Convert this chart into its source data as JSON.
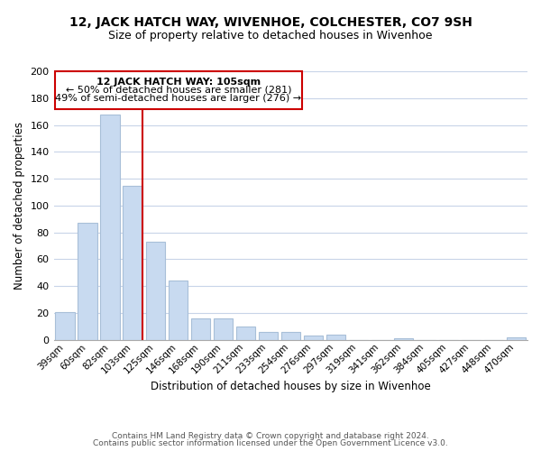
{
  "title": "12, JACK HATCH WAY, WIVENHOE, COLCHESTER, CO7 9SH",
  "subtitle": "Size of property relative to detached houses in Wivenhoe",
  "xlabel": "Distribution of detached houses by size in Wivenhoe",
  "ylabel": "Number of detached properties",
  "bar_color": "#c8daf0",
  "bar_edge_color": "#a8bfd8",
  "categories": [
    "39sqm",
    "60sqm",
    "82sqm",
    "103sqm",
    "125sqm",
    "146sqm",
    "168sqm",
    "190sqm",
    "211sqm",
    "233sqm",
    "254sqm",
    "276sqm",
    "297sqm",
    "319sqm",
    "341sqm",
    "362sqm",
    "384sqm",
    "405sqm",
    "427sqm",
    "448sqm",
    "470sqm"
  ],
  "values": [
    21,
    87,
    168,
    115,
    73,
    44,
    16,
    16,
    10,
    6,
    6,
    3,
    4,
    0,
    0,
    1,
    0,
    0,
    0,
    0,
    2
  ],
  "vline_index": 3,
  "vline_color": "#cc0000",
  "ann_title": "12 JACK HATCH WAY: 105sqm",
  "ann_line2": "← 50% of detached houses are smaller (281)",
  "ann_line3": "49% of semi-detached houses are larger (276) →",
  "ylim": [
    0,
    200
  ],
  "yticks": [
    0,
    20,
    40,
    60,
    80,
    100,
    120,
    140,
    160,
    180,
    200
  ],
  "footer_line1": "Contains HM Land Registry data © Crown copyright and database right 2024.",
  "footer_line2": "Contains public sector information licensed under the Open Government Licence v3.0.",
  "background_color": "#ffffff",
  "grid_color": "#c8d4e8"
}
